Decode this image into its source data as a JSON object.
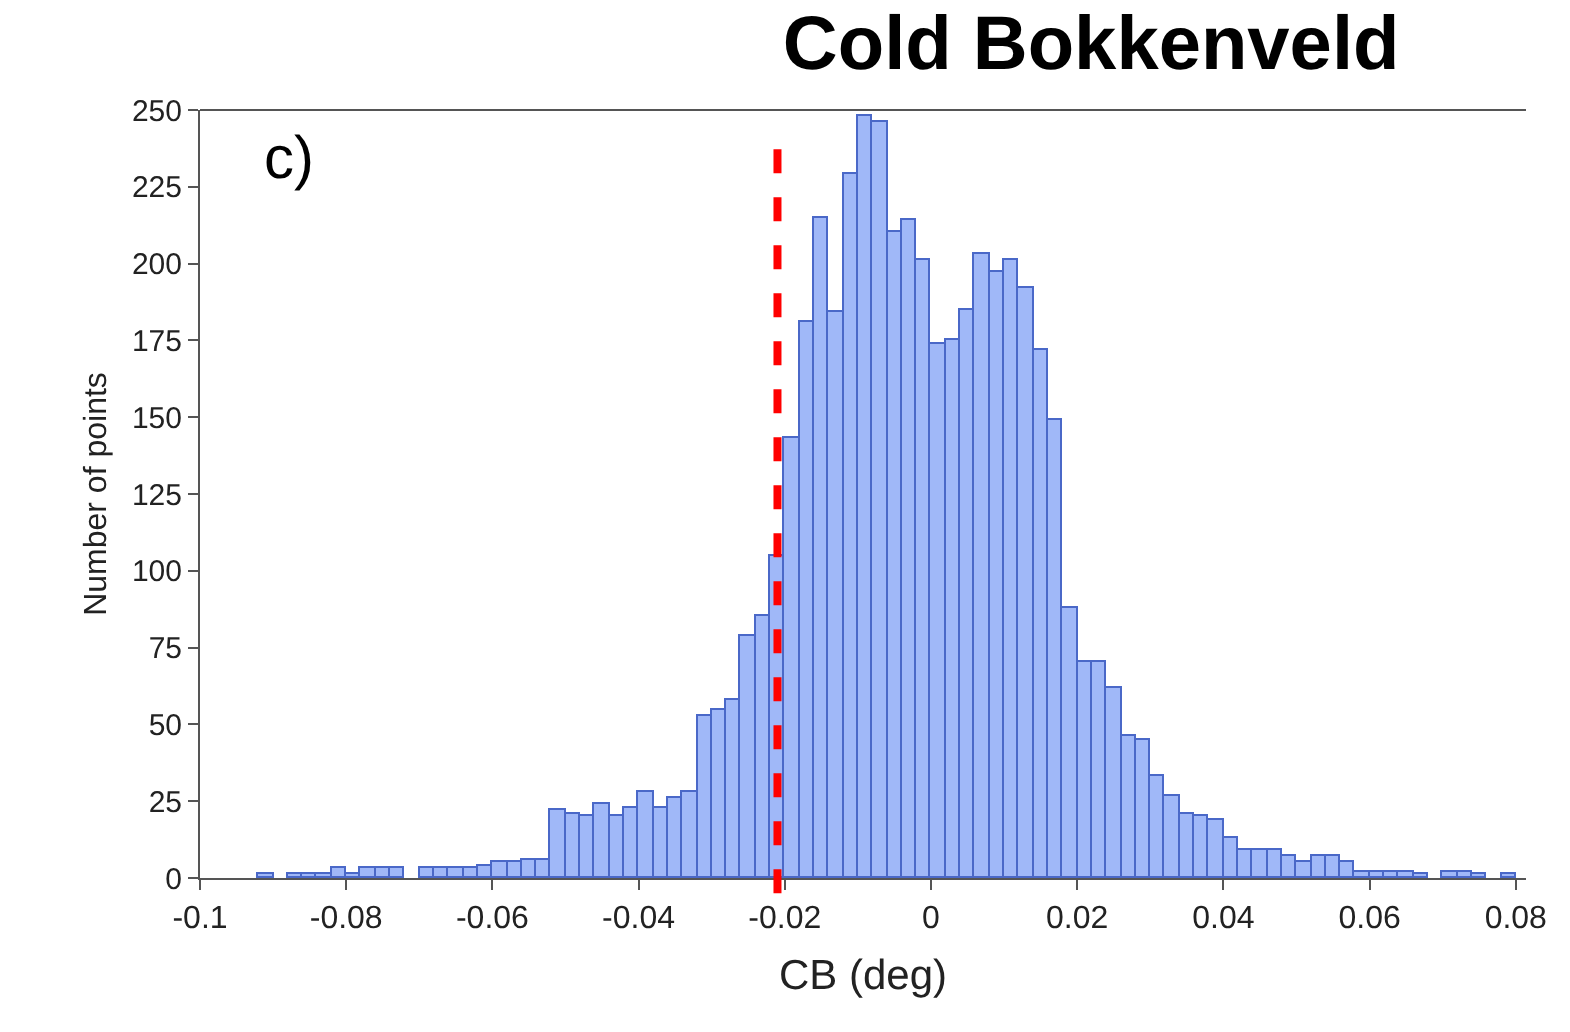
{
  "chart_data": {
    "type": "histogram",
    "title": "Cold Bokkenveld",
    "xlabel": "CB (deg)",
    "ylabel": "Number of points",
    "annotations": [
      "c)"
    ],
    "bins": [
      -0.1,
      -0.098,
      -0.096,
      -0.094,
      -0.092,
      -0.09,
      -0.088,
      -0.086,
      -0.084,
      -0.082,
      -0.08,
      -0.078,
      -0.076,
      -0.074,
      -0.072,
      -0.07,
      -0.068,
      -0.066,
      -0.064,
      -0.062,
      -0.06,
      -0.058,
      -0.056,
      -0.054,
      -0.052,
      -0.05,
      -0.048,
      -0.046,
      -0.044,
      -0.042,
      -0.04,
      -0.038,
      -0.036,
      -0.034,
      -0.032,
      -0.03,
      -0.028,
      -0.026,
      -0.024,
      -0.022,
      -0.02,
      -0.018,
      -0.016,
      -0.014,
      -0.012,
      -0.01,
      -0.008,
      -0.006,
      -0.004,
      -0.002,
      0,
      0.002,
      0.004,
      0.006,
      0.008,
      0.01,
      0.012,
      0.014,
      0.016,
      0.018,
      0.02,
      0.022,
      0.024,
      0.026,
      0.028,
      0.03,
      0.032,
      0.034,
      0.036,
      0.038,
      0.04,
      0.042,
      0.044,
      0.046,
      0.048,
      0.05,
      0.052,
      0.054,
      0.056,
      0.058,
      0.06,
      0.062,
      0.064,
      0.066,
      0.068,
      0.07,
      0.072,
      0.074,
      0.076,
      0.078,
      0.08
    ],
    "values": [
      0,
      0,
      0,
      0,
      1,
      0,
      1,
      1,
      1,
      3,
      1,
      3,
      3,
      3,
      0,
      3,
      3,
      3,
      3,
      4,
      5,
      5,
      6,
      6,
      22,
      21,
      20,
      24,
      20,
      23,
      28,
      23,
      26,
      28,
      53,
      55,
      58,
      79,
      85,
      105,
      143,
      181,
      215,
      184,
      229,
      248,
      246,
      210,
      214,
      201,
      174,
      175,
      185,
      203,
      197,
      201,
      192,
      172,
      149,
      88,
      70,
      70,
      62,
      46,
      45,
      33,
      27,
      21,
      20,
      19,
      13,
      9,
      9,
      9,
      7,
      5,
      7,
      7,
      5,
      2,
      2,
      2,
      2,
      1,
      0,
      2,
      2,
      1,
      0,
      1
    ],
    "color": "#a0b8f8",
    "xlim": [
      -0.1,
      0.0814
    ],
    "ylim": [
      0,
      250
    ],
    "xticks": [
      -0.1,
      -0.08,
      -0.06,
      -0.04,
      -0.02,
      0,
      0.02,
      0.04,
      0.06,
      0.08
    ],
    "yticks": [
      0,
      25,
      50,
      75,
      100,
      125,
      150,
      175,
      200,
      225,
      250
    ],
    "ref_lines": [
      {
        "axis": "x",
        "value": -0.021,
        "color": "#ff0000",
        "line_style": "dashed"
      }
    ]
  }
}
